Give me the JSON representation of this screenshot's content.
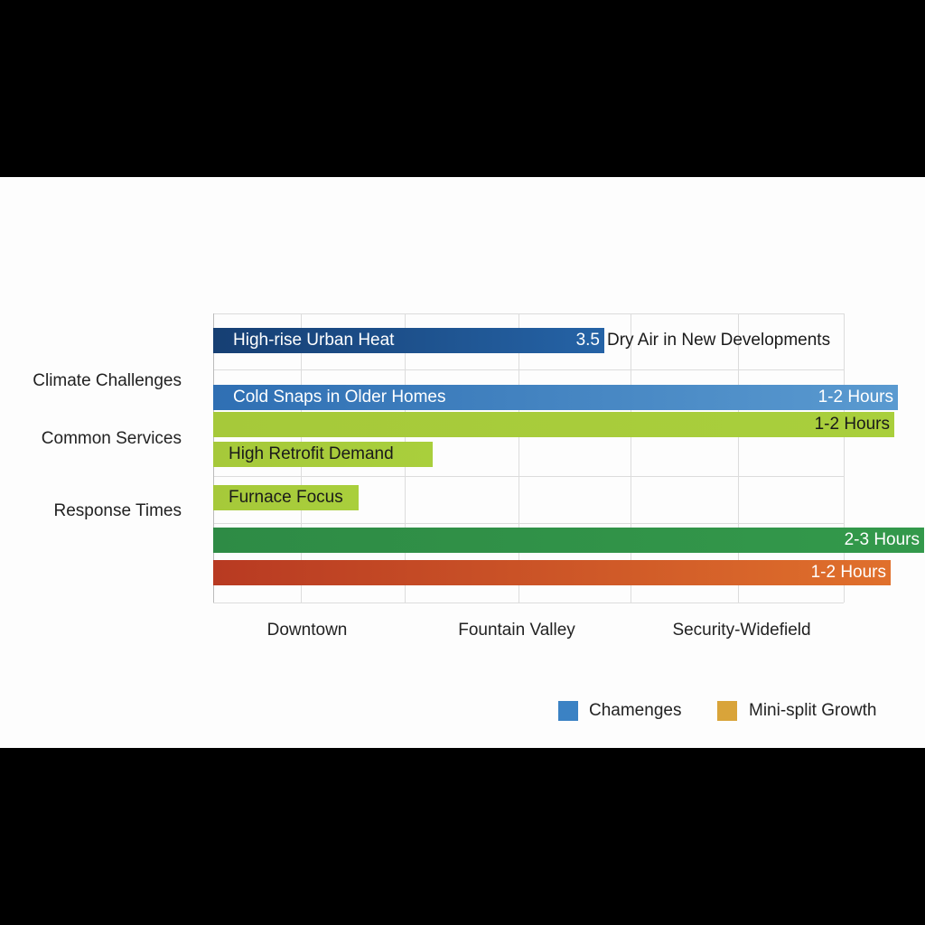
{
  "chart_data": {
    "type": "bar",
    "orientation": "horizontal",
    "title": "",
    "y_categories": [
      "Climate Challenges",
      "Common Services",
      "Response Times"
    ],
    "x_categories": [
      "Downtown",
      "Fountain Valley",
      "Security-Widefield"
    ],
    "grid": true,
    "legend_position": "bottom-right",
    "legend": [
      {
        "name": "Chamenges",
        "color": "#3b82c4"
      },
      {
        "name": "Mini-split Growth",
        "color": "#d9a43a"
      }
    ],
    "bars": [
      {
        "label": "High-rise Urban Heat",
        "end_label": "3.5",
        "outside_label": "Dry Air in New Developments",
        "value": 0.62,
        "color_start": "#163f73",
        "color_end": "#2563a6",
        "text_color": "#ffffff"
      },
      {
        "label": "Cold Snaps in Older Homes",
        "end_label": "1-2 Hours",
        "value": 1.086,
        "color_start": "#2f6fb3",
        "color_end": "#5a9ad0",
        "text_color": "#ffffff"
      },
      {
        "label": "",
        "end_label": "1-2 Hours",
        "value": 1.08,
        "color_start": "#a6c93a",
        "color_end": "#a9cf3c",
        "text_color": "#1a1a1a"
      },
      {
        "label": "High Retrofit Demand",
        "end_label": "",
        "value": 0.348,
        "color_start": "#a6c93a",
        "color_end": "#a9cf3c",
        "text_color": "#1a1a1a"
      },
      {
        "label": "Furnace Focus",
        "end_label": "",
        "value": 0.23,
        "color_start": "#a6c93a",
        "color_end": "#a9cf3c",
        "text_color": "#1a1a1a"
      },
      {
        "label": "",
        "end_label": "2-3 Hours",
        "value": 1.128,
        "color_start": "#2e8b45",
        "color_end": "#33994b",
        "text_color": "#ffffff"
      },
      {
        "label": "",
        "end_label": "1-2 Hours",
        "value": 1.074,
        "color_start": "#b83a22",
        "color_end": "#e0702c",
        "text_color": "#ffffff"
      }
    ]
  }
}
